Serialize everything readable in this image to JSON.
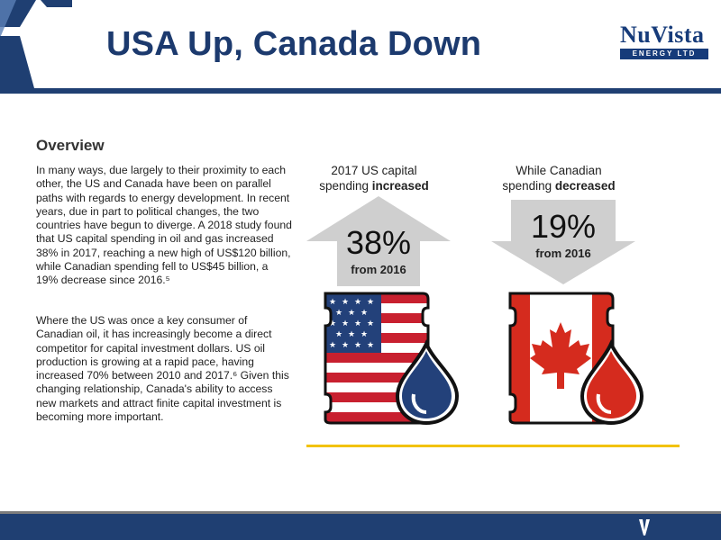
{
  "slide": {
    "title": "USA Up, Canada Down"
  },
  "logo": {
    "name": "NuVista",
    "tagline": "ENERGY LTD"
  },
  "overview": {
    "heading": "Overview",
    "paragraph1": "In many ways, due largely to their proximity to each other, the US and Canada have been on parallel paths with regards to energy development. In recent years, due in part to political changes, the two countries have begun to diverge. A 2018 study found that US capital spending in oil and gas increased 38% in 2017, reaching a new high of US$120 billion, while Canadian spending fell to US$45 billion, a 19% decrease since 2016.⁵",
    "paragraph2": "Where the US was once a key consumer of Canadian oil, it has increasingly become a direct competitor for capital investment dollars. US oil production is growing at a rapid pace, having increased 70% between 2010 and 2017.⁶ Given this changing relationship, Canada's ability to access new markets and attract finite capital investment is becoming more important."
  },
  "us_panel": {
    "caption_line1": "2017 US capital",
    "caption_line2_prefix": "spending ",
    "caption_line2_bold": "increased",
    "percent": "38%",
    "from": "from 2016"
  },
  "ca_panel": {
    "caption_line1": "While Canadian",
    "caption_line2_prefix": "spending ",
    "caption_line2_bold": "decreased",
    "percent": "19%",
    "from": "from 2016"
  },
  "colors": {
    "title_blue": "#1c3a6e",
    "footer_blue": "#1f3f72",
    "us_red": "#c8202f",
    "us_blue": "#23417a",
    "ca_red": "#d52b1e",
    "arrow_gray": "#cfcfcf",
    "accent_yellow": "#f2c200"
  }
}
